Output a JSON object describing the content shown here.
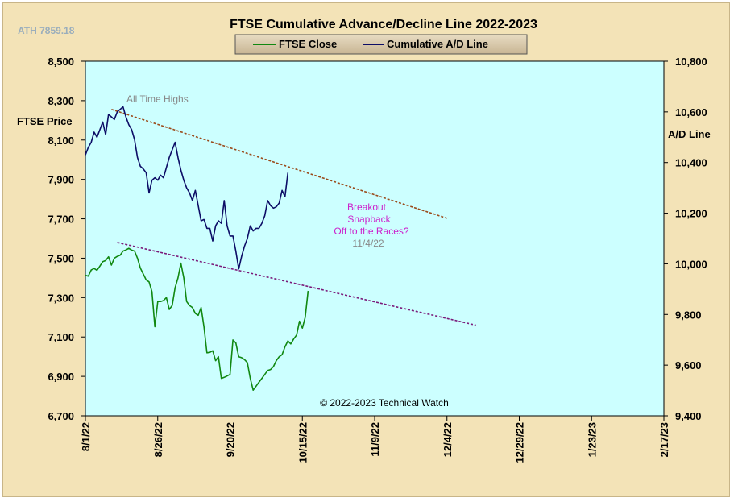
{
  "chart_data": {
    "type": "line",
    "title": "FTSE Cumulative  Advance/Decline  Line 2022-2023",
    "corner_note": "ATH 7859.18",
    "ylabel_left": "FTSE Price",
    "ylabel_right": "A/D Line",
    "ylim_left": [
      6700,
      8500
    ],
    "ylim_right": [
      9400,
      10800
    ],
    "yticks_left": [
      "6,700",
      "6,900",
      "7,100",
      "7,300",
      "7,500",
      "7,700",
      "7,900",
      "8,100",
      "8,300",
      "8,500"
    ],
    "yticks_right": [
      "9,400",
      "9,600",
      "9,800",
      "10,000",
      "10,200",
      "10,400",
      "10,600",
      "10,800"
    ],
    "x_range_days": [
      0,
      200
    ],
    "xticks": [
      {
        "label": "8/1/22",
        "day": 0
      },
      {
        "label": "8/26/22",
        "day": 25
      },
      {
        "label": "9/20/22",
        "day": 50
      },
      {
        "label": "10/15/22",
        "day": 75
      },
      {
        "label": "11/9/22",
        "day": 100
      },
      {
        "label": "12/4/22",
        "day": 125
      },
      {
        "label": "12/29/22",
        "day": 150
      },
      {
        "label": "1/23/23",
        "day": 175
      },
      {
        "label": "2/17/23",
        "day": 200
      }
    ],
    "grid": false,
    "legend_position": "top",
    "series": [
      {
        "name": "FTSE Close",
        "axis": "left",
        "color": "#118811",
        "points": [
          [
            0,
            7413
          ],
          [
            1,
            7409
          ],
          [
            2,
            7440
          ],
          [
            3,
            7448
          ],
          [
            4,
            7439
          ],
          [
            5,
            7460
          ],
          [
            6,
            7482
          ],
          [
            7,
            7488
          ],
          [
            8,
            7507
          ],
          [
            9,
            7465
          ],
          [
            10,
            7500
          ],
          [
            11,
            7509
          ],
          [
            12,
            7515
          ],
          [
            13,
            7536
          ],
          [
            14,
            7542
          ],
          [
            15,
            7550
          ],
          [
            16,
            7541
          ],
          [
            17,
            7536
          ],
          [
            18,
            7500
          ],
          [
            19,
            7450
          ],
          [
            20,
            7420
          ],
          [
            21,
            7390
          ],
          [
            22,
            7380
          ],
          [
            23,
            7330
          ],
          [
            24,
            7152
          ],
          [
            25,
            7280
          ],
          [
            26,
            7280
          ],
          [
            27,
            7285
          ],
          [
            28,
            7300
          ],
          [
            29,
            7240
          ],
          [
            30,
            7260
          ],
          [
            31,
            7350
          ],
          [
            32,
            7400
          ],
          [
            33,
            7475
          ],
          [
            34,
            7400
          ],
          [
            35,
            7280
          ],
          [
            36,
            7260
          ],
          [
            37,
            7250
          ],
          [
            38,
            7220
          ],
          [
            39,
            7210
          ],
          [
            40,
            7250
          ],
          [
            41,
            7150
          ],
          [
            42,
            7020
          ],
          [
            43,
            7022
          ],
          [
            44,
            7030
          ],
          [
            45,
            6980
          ],
          [
            46,
            7000
          ],
          [
            47,
            6890
          ],
          [
            48,
            6895
          ],
          [
            49,
            6902
          ],
          [
            50,
            6910
          ],
          [
            51,
            7085
          ],
          [
            52,
            7070
          ],
          [
            53,
            7000
          ],
          [
            54,
            6995
          ],
          [
            55,
            6985
          ],
          [
            56,
            6970
          ],
          [
            57,
            6890
          ],
          [
            58,
            6830
          ],
          [
            59,
            6850
          ],
          [
            60,
            6870
          ],
          [
            61,
            6890
          ],
          [
            62,
            6910
          ],
          [
            63,
            6930
          ],
          [
            64,
            6935
          ],
          [
            65,
            6950
          ],
          [
            66,
            6980
          ],
          [
            67,
            7000
          ],
          [
            68,
            7010
          ],
          [
            69,
            7050
          ],
          [
            70,
            7080
          ],
          [
            71,
            7065
          ],
          [
            72,
            7090
          ],
          [
            73,
            7110
          ],
          [
            74,
            7180
          ],
          [
            75,
            7145
          ],
          [
            76,
            7200
          ],
          [
            77,
            7334
          ]
        ]
      },
      {
        "name": "Cumulative A/D Line",
        "axis": "right",
        "color": "#0d0d66",
        "points": [
          [
            0,
            10430
          ],
          [
            1,
            10460
          ],
          [
            2,
            10480
          ],
          [
            3,
            10520
          ],
          [
            4,
            10500
          ],
          [
            5,
            10530
          ],
          [
            6,
            10560
          ],
          [
            7,
            10510
          ],
          [
            8,
            10590
          ],
          [
            9,
            10580
          ],
          [
            10,
            10570
          ],
          [
            11,
            10600
          ],
          [
            12,
            10610
          ],
          [
            13,
            10620
          ],
          [
            14,
            10580
          ],
          [
            15,
            10550
          ],
          [
            16,
            10530
          ],
          [
            17,
            10490
          ],
          [
            18,
            10420
          ],
          [
            19,
            10385
          ],
          [
            20,
            10375
          ],
          [
            21,
            10360
          ],
          [
            22,
            10280
          ],
          [
            23,
            10330
          ],
          [
            24,
            10340
          ],
          [
            25,
            10330
          ],
          [
            26,
            10350
          ],
          [
            27,
            10340
          ],
          [
            28,
            10380
          ],
          [
            29,
            10420
          ],
          [
            30,
            10450
          ],
          [
            31,
            10480
          ],
          [
            32,
            10420
          ],
          [
            33,
            10370
          ],
          [
            34,
            10330
          ],
          [
            35,
            10300
          ],
          [
            36,
            10280
          ],
          [
            37,
            10250
          ],
          [
            38,
            10290
          ],
          [
            39,
            10230
          ],
          [
            40,
            10170
          ],
          [
            41,
            10175
          ],
          [
            42,
            10140
          ],
          [
            43,
            10140
          ],
          [
            44,
            10090
          ],
          [
            45,
            10150
          ],
          [
            46,
            10170
          ],
          [
            47,
            10160
          ],
          [
            48,
            10250
          ],
          [
            49,
            10150
          ],
          [
            50,
            10110
          ],
          [
            51,
            10110
          ],
          [
            52,
            10050
          ],
          [
            53,
            9980
          ],
          [
            54,
            10030
          ],
          [
            55,
            10070
          ],
          [
            56,
            10100
          ],
          [
            57,
            10150
          ],
          [
            58,
            10130
          ],
          [
            59,
            10140
          ],
          [
            60,
            10140
          ],
          [
            61,
            10160
          ],
          [
            62,
            10190
          ],
          [
            63,
            10250
          ],
          [
            64,
            10230
          ],
          [
            65,
            10220
          ],
          [
            66,
            10225
          ],
          [
            67,
            10240
          ],
          [
            68,
            10290
          ],
          [
            69,
            10265
          ],
          [
            70,
            10360
          ]
        ]
      }
    ],
    "trendlines": [
      {
        "name": "upper trendline",
        "axis": "right",
        "color": "#9a4a1a",
        "from": [
          9,
          10610
        ],
        "to": [
          125,
          10180
        ]
      },
      {
        "name": "lower trendline",
        "axis": "left",
        "color": "#7a1a7a",
        "from": [
          11,
          7580
        ],
        "to": [
          135,
          7160
        ]
      }
    ],
    "annotations": [
      {
        "text": "All Time Highs",
        "color": "#888888"
      },
      {
        "text": "Breakout",
        "color": "#cc22cc"
      },
      {
        "text": "Snapback",
        "color": "#cc22cc"
      },
      {
        "text": "Off to the Races?",
        "color": "#cc22cc"
      },
      {
        "text": "11/4/22",
        "color": "#888888"
      },
      {
        "text": "© 2022-2023  Technical Watch",
        "color": "#000000"
      }
    ],
    "colors": {
      "plot_background": "#ccffff",
      "outer_background": "#f3e3b7"
    }
  }
}
